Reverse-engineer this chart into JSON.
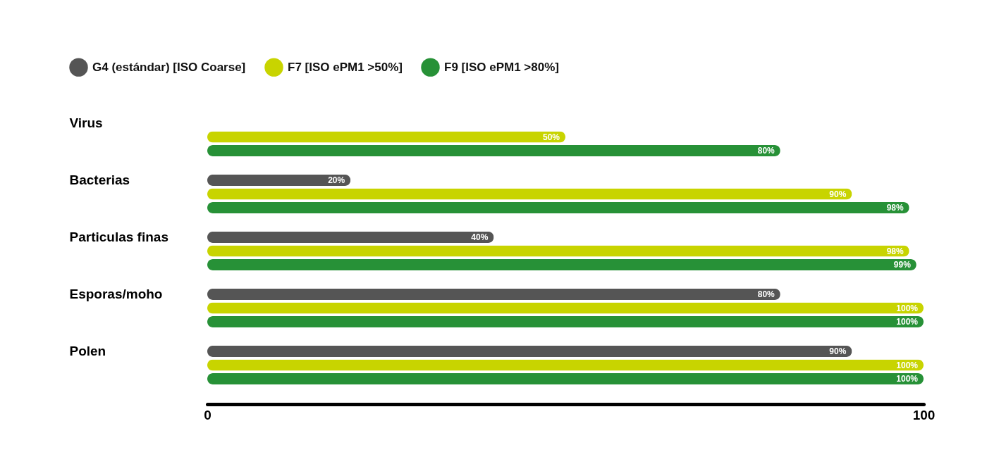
{
  "chart_data": {
    "type": "bar",
    "orientation": "horizontal",
    "categories": [
      "Virus",
      "Bacterias",
      "Particulas finas",
      "Esporas/moho",
      "Polen"
    ],
    "series": [
      {
        "name": "G4 (estándar) [ISO Coarse]",
        "color": "#555555",
        "values": [
          null,
          20,
          40,
          80,
          90
        ],
        "value_labels": [
          null,
          "20%",
          "40%",
          "80%",
          "90%"
        ]
      },
      {
        "name": "F7 [ISO ePM1 >50%]",
        "color": "#c8d400",
        "values": [
          50,
          90,
          98,
          100,
          100
        ],
        "value_labels": [
          "50%",
          "90%",
          "98%",
          "100%",
          "100%"
        ]
      },
      {
        "name": "F9 [ISO ePM1 >80%]",
        "color": "#279137",
        "values": [
          80,
          98,
          99,
          100,
          100
        ],
        "value_labels": [
          "80%",
          "98%",
          "99%",
          "100%",
          "100%"
        ]
      }
    ],
    "xlim": [
      0,
      100
    ],
    "xticks": [
      0,
      100
    ],
    "grid": false,
    "legend": "top left"
  }
}
